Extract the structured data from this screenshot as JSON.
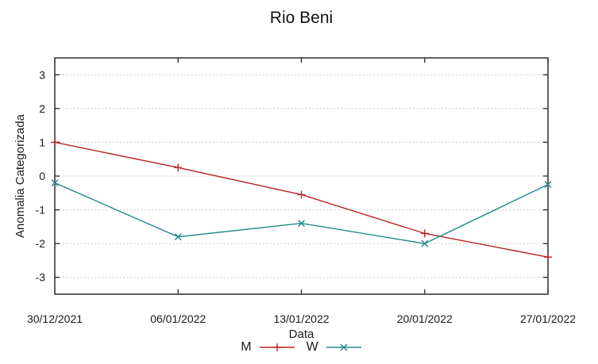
{
  "chart_data": {
    "type": "line",
    "title": "Rio Beni",
    "xlabel": "Data",
    "ylabel": "Anomalia Categorizada",
    "categories": [
      "30/12/2021",
      "06/01/2022",
      "13/01/2022",
      "20/01/2022",
      "27/01/2022"
    ],
    "series": [
      {
        "name": "M",
        "color": "#b82424",
        "marker": "plus",
        "values": [
          1.0,
          0.25,
          -0.55,
          -1.7,
          -2.4
        ]
      },
      {
        "name": "W",
        "color": "#1f8a8a",
        "marker": "cross",
        "values": [
          -0.2,
          -1.8,
          -1.4,
          -2.0,
          -0.25
        ]
      }
    ],
    "yticks": [
      -3,
      -2,
      -1,
      0,
      1,
      2,
      3
    ],
    "ylim": [
      -3.5,
      3.5
    ],
    "grid": "horizontal dotted gray",
    "legend_position": "bottom-center",
    "colors": {
      "border": "#3a3a3a",
      "gridline": "#bcbcbc",
      "tick": "#222222",
      "text": "#1a1a1a"
    }
  }
}
